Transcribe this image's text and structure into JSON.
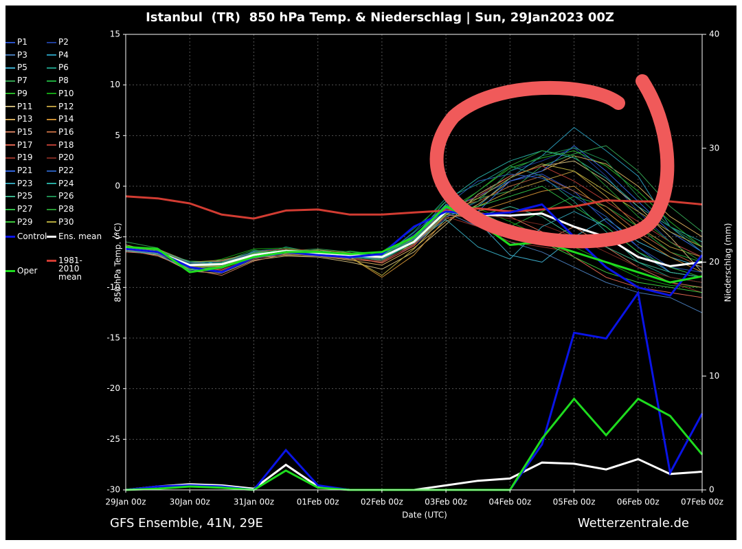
{
  "chart_data": {
    "type": "line",
    "title": "Istanbul  (TR)  850 hPa Temp. & Niederschlag | Sun, 29Jan2023 00Z",
    "x_label": "Date (UTC)",
    "y_label": "850 hPa Temp. (°C)",
    "y2_label": "Niederschlag (mm)",
    "footer_left": "GFS Ensemble, 41N, 29E",
    "footer_right": "Wetterzentrale.de",
    "grid": true,
    "x": [
      0,
      0.5,
      1,
      1.5,
      2,
      2.5,
      3,
      3.5,
      4,
      4.5,
      5,
      5.5,
      6,
      6.5,
      7,
      7.5,
      8,
      8.5,
      9
    ],
    "xlim": [
      0,
      9
    ],
    "xticks": [
      {
        "value": 0,
        "label": "29Jan 00z"
      },
      {
        "value": 1,
        "label": "30Jan 00z"
      },
      {
        "value": 2,
        "label": "31Jan 00z"
      },
      {
        "value": 3,
        "label": "01Feb 00z"
      },
      {
        "value": 4,
        "label": "02Feb 00z"
      },
      {
        "value": 5,
        "label": "03Feb 00z"
      },
      {
        "value": 6,
        "label": "04Feb 00z"
      },
      {
        "value": 7,
        "label": "05Feb 00z"
      },
      {
        "value": 8,
        "label": "06Feb 00z"
      },
      {
        "value": 9,
        "label": "07Feb 00z"
      }
    ],
    "ylim": [
      -30,
      15
    ],
    "yticks": [
      15,
      10,
      5,
      0,
      -5,
      -10,
      -15,
      -20,
      -25,
      -30
    ],
    "y2lim": [
      0,
      40
    ],
    "y2ticks": [
      40,
      30,
      20,
      10,
      0
    ],
    "series": [
      {
        "name": "P1",
        "color": "#2850c8",
        "values": [
          -6.0,
          -6.8,
          -8.2,
          -8.5,
          -7.2,
          -6.6,
          -6.9,
          -7.1,
          -6.8,
          -4.8,
          -2.2,
          -1.0,
          0.5,
          1.2,
          -0.5,
          -3.5,
          -6.0,
          -8.5,
          -9.0
        ]
      },
      {
        "name": "P2",
        "color": "#1e3c96",
        "values": [
          -6.3,
          -6.4,
          -7.5,
          -7.4,
          -6.5,
          -6.8,
          -6.4,
          -7.0,
          -7.3,
          -5.9,
          -3.1,
          -1.5,
          1.5,
          2.5,
          3.8,
          1.0,
          -2.5,
          -5.5,
          -7.0
        ]
      },
      {
        "name": "P3",
        "color": "#4678b4",
        "values": [
          -6.1,
          -6.2,
          -7.9,
          -7.6,
          -6.9,
          -6.3,
          -6.7,
          -6.6,
          -7.1,
          -5.2,
          -2.6,
          -4.0,
          -5.5,
          -6.5,
          -8.0,
          -9.5,
          -10.5,
          -11.0,
          -12.5
        ]
      },
      {
        "name": "P4",
        "color": "#2896b4",
        "values": [
          -6.4,
          -6.6,
          -7.6,
          -7.9,
          -6.4,
          -6.2,
          -6.5,
          -6.9,
          -6.9,
          -5.6,
          -3.0,
          -2.0,
          0.8,
          3.0,
          5.8,
          3.5,
          1.0,
          -4.0,
          -6.5
        ]
      },
      {
        "name": "P5",
        "color": "#3caac8",
        "values": [
          -6.2,
          -6.3,
          -8.0,
          -7.3,
          -6.7,
          -6.5,
          -6.3,
          -6.8,
          -7.4,
          -5.0,
          -1.8,
          -3.5,
          -6.8,
          -7.5,
          -5.0,
          -3.2,
          -5.5,
          -7.0,
          -8.0
        ]
      },
      {
        "name": "P6",
        "color": "#1e9682",
        "values": [
          -6.0,
          -6.7,
          -7.7,
          -8.1,
          -7.0,
          -6.0,
          -6.6,
          -7.2,
          -7.0,
          -4.5,
          -1.2,
          0.2,
          2.0,
          1.0,
          -1.5,
          -4.5,
          -7.5,
          -9.0,
          -9.5
        ]
      },
      {
        "name": "P7",
        "color": "#32a050",
        "values": [
          -5.5,
          -6.1,
          -8.3,
          -8.0,
          -6.6,
          -6.4,
          -6.2,
          -6.5,
          -6.6,
          -5.3,
          -2.0,
          -1.2,
          -0.5,
          2.0,
          3.2,
          4.0,
          1.5,
          -2.0,
          -4.5
        ]
      },
      {
        "name": "P8",
        "color": "#1eaa3c",
        "values": [
          -6.3,
          -6.5,
          -7.4,
          -7.5,
          -6.3,
          -6.7,
          -6.8,
          -6.4,
          -6.8,
          -4.9,
          -2.4,
          -3.0,
          -4.0,
          -2.5,
          -1.0,
          -2.0,
          -4.0,
          -6.5,
          -7.5
        ]
      },
      {
        "name": "P9",
        "color": "#28b428",
        "values": [
          -6.1,
          -6.6,
          -8.1,
          -7.8,
          -6.8,
          -6.3,
          -6.4,
          -6.9,
          -7.2,
          -5.4,
          -2.9,
          -0.5,
          1.8,
          2.8,
          3.5,
          2.0,
          -0.5,
          -3.5,
          -6.0
        ]
      },
      {
        "name": "P10",
        "color": "#14a014",
        "values": [
          -6.2,
          -6.3,
          -7.8,
          -7.2,
          -6.2,
          -6.1,
          -6.5,
          -6.7,
          -6.5,
          -4.2,
          -1.5,
          -2.2,
          -3.5,
          -5.0,
          -6.0,
          -7.5,
          -9.0,
          -9.8,
          -10.0
        ]
      },
      {
        "name": "P11",
        "color": "#c8b478",
        "values": [
          -6.4,
          -6.8,
          -8.4,
          -8.6,
          -7.3,
          -6.9,
          -7.0,
          -7.5,
          -8.2,
          -6.5,
          -3.8,
          -0.8,
          1.0,
          2.0,
          2.5,
          0.5,
          -2.0,
          -5.0,
          -8.5
        ]
      },
      {
        "name": "P12",
        "color": "#b4963c",
        "values": [
          -6.0,
          -6.2,
          -7.5,
          -7.3,
          -6.6,
          -6.6,
          -6.3,
          -6.6,
          -7.0,
          -5.8,
          -2.7,
          -2.0,
          -0.5,
          0.5,
          1.5,
          -1.0,
          -4.0,
          -6.0,
          -7.0
        ]
      },
      {
        "name": "P13",
        "color": "#d2aa5a",
        "values": [
          -5.8,
          -6.5,
          -8.0,
          -7.9,
          -7.1,
          -6.8,
          -6.9,
          -7.3,
          -7.8,
          -6.1,
          -3.5,
          -1.8,
          0.5,
          1.5,
          3.0,
          2.2,
          0.0,
          -3.0,
          -5.0
        ]
      },
      {
        "name": "P14",
        "color": "#c88c32",
        "values": [
          -6.2,
          -6.4,
          -7.7,
          -8.0,
          -6.9,
          -6.4,
          -6.6,
          -7.0,
          -9.0,
          -6.8,
          -3.2,
          -2.5,
          -1.5,
          -0.5,
          0.0,
          -2.5,
          -5.0,
          -7.0,
          -8.5
        ]
      },
      {
        "name": "P15",
        "color": "#c8785a",
        "values": [
          -6.3,
          -6.9,
          -8.2,
          -8.8,
          -7.4,
          -6.7,
          -6.8,
          -7.2,
          -7.5,
          -5.7,
          -2.8,
          -3.2,
          -4.5,
          -5.5,
          -4.0,
          -6.0,
          -8.0,
          -9.5,
          -10.0
        ]
      },
      {
        "name": "P16",
        "color": "#b4643c",
        "values": [
          -6.1,
          -6.3,
          -7.6,
          -7.4,
          -6.7,
          -6.5,
          -6.6,
          -6.9,
          -7.3,
          -5.5,
          -2.1,
          -1.5,
          0.0,
          1.0,
          -0.5,
          -2.0,
          -4.5,
          -6.5,
          -8.0
        ]
      },
      {
        "name": "P17",
        "color": "#dc6450",
        "values": [
          -6.5,
          -6.7,
          -7.9,
          -8.3,
          -7.0,
          -6.6,
          -6.7,
          -7.0,
          -7.6,
          -5.9,
          -2.3,
          -2.6,
          -3.0,
          -4.5,
          -7.0,
          -9.0,
          -10.0,
          -10.5,
          -11.0
        ]
      },
      {
        "name": "P18",
        "color": "#b43c32",
        "values": [
          -6.0,
          -6.4,
          -7.8,
          -7.6,
          -6.5,
          -6.2,
          -6.4,
          -6.8,
          -7.2,
          -5.1,
          -2.5,
          -1.0,
          1.0,
          2.0,
          0.5,
          -1.5,
          -3.5,
          -5.5,
          -7.0
        ]
      },
      {
        "name": "P19",
        "color": "#963228",
        "values": [
          -6.2,
          -6.6,
          -8.1,
          -8.2,
          -7.2,
          -6.5,
          -6.7,
          -7.1,
          -7.4,
          -5.8,
          -3.0,
          -4.0,
          -5.5,
          -6.0,
          -6.5,
          -7.5,
          -8.5,
          -9.5,
          -10.5
        ]
      },
      {
        "name": "P20",
        "color": "#7a2820",
        "values": [
          -6.3,
          -6.5,
          -7.7,
          -7.7,
          -6.8,
          -6.4,
          -6.6,
          -6.9,
          -7.1,
          -5.4,
          -2.6,
          -2.8,
          -3.2,
          -3.8,
          -5.0,
          -6.5,
          -8.0,
          -9.0,
          -9.5
        ]
      },
      {
        "name": "P21",
        "color": "#3264dc",
        "values": [
          -6.1,
          -6.6,
          -8.0,
          -8.4,
          -7.1,
          -6.6,
          -6.8,
          -7.1,
          -7.0,
          -5.2,
          -2.2,
          -2.5,
          0.5,
          1.5,
          4.0,
          1.5,
          -1.5,
          -4.5,
          -6.5
        ]
      },
      {
        "name": "P22",
        "color": "#285ab4",
        "values": [
          -6.2,
          -6.5,
          -7.6,
          -7.6,
          -6.6,
          -6.3,
          -6.5,
          -6.8,
          -6.9,
          -4.6,
          -1.9,
          0.5,
          1.2,
          0.8,
          -1.0,
          -3.0,
          -6.0,
          -8.0,
          -8.5
        ]
      },
      {
        "name": "P23",
        "color": "#32a0b4",
        "values": [
          -6.4,
          -6.7,
          -8.3,
          -8.1,
          -7.0,
          -6.5,
          -6.7,
          -7.0,
          -7.2,
          -5.6,
          -3.3,
          -6.0,
          -7.2,
          -4.0,
          -2.5,
          -4.0,
          -6.5,
          -8.5,
          -9.0
        ]
      },
      {
        "name": "P24",
        "color": "#28aaa0",
        "values": [
          -6.0,
          -6.3,
          -7.5,
          -7.5,
          -6.5,
          -6.4,
          -6.5,
          -6.7,
          -6.8,
          -5.0,
          -1.5,
          0.8,
          2.5,
          3.5,
          2.8,
          0.8,
          -2.0,
          -4.0,
          -5.5
        ]
      },
      {
        "name": "P25",
        "color": "#3cb48c",
        "values": [
          -6.2,
          -6.5,
          -7.9,
          -7.8,
          -6.9,
          -6.5,
          -6.6,
          -6.9,
          -7.1,
          -5.5,
          -2.6,
          -3.0,
          -2.0,
          -3.0,
          -5.0,
          -6.0,
          -7.5,
          -8.5,
          -9.0
        ]
      },
      {
        "name": "P26",
        "color": "#1e8c50",
        "values": [
          -6.3,
          -6.6,
          -8.0,
          -8.0,
          -7.0,
          -6.6,
          -6.7,
          -7.0,
          -7.3,
          -5.6,
          -2.7,
          -1.5,
          1.5,
          3.0,
          3.8,
          2.5,
          -1.0,
          -4.0,
          -6.0
        ]
      },
      {
        "name": "P27",
        "color": "#32be46",
        "values": [
          -6.1,
          -6.4,
          -7.7,
          -7.6,
          -6.7,
          -6.4,
          -6.5,
          -6.8,
          -7.0,
          -5.3,
          -2.4,
          -2.0,
          -1.0,
          0.0,
          -2.0,
          -4.0,
          -6.5,
          -8.0,
          -9.0
        ]
      },
      {
        "name": "P28",
        "color": "#289632",
        "values": [
          -6.2,
          -6.5,
          -7.8,
          -7.8,
          -6.8,
          -6.5,
          -6.6,
          -6.8,
          -7.1,
          -5.4,
          -2.5,
          -0.5,
          2.0,
          3.5,
          3.0,
          0.0,
          -3.0,
          -5.5,
          -7.5
        ]
      },
      {
        "name": "P29",
        "color": "#3cc83c",
        "values": [
          -6.0,
          -6.3,
          -8.2,
          -8.0,
          -6.6,
          -6.3,
          -6.4,
          -6.7,
          -6.9,
          -5.1,
          -2.0,
          -2.5,
          -4.0,
          -5.5,
          -7.0,
          -8.5,
          -9.5,
          -10.0,
          -10.5
        ]
      },
      {
        "name": "P30",
        "color": "#b4aa3c",
        "values": [
          -6.3,
          -6.6,
          -7.9,
          -7.9,
          -6.9,
          -6.6,
          -6.7,
          -7.0,
          -8.8,
          -6.2,
          -2.8,
          -1.2,
          0.8,
          2.2,
          1.5,
          -0.5,
          -2.5,
          -4.5,
          -6.0
        ]
      },
      {
        "name": "Control",
        "color": "#0a14e6",
        "values": [
          -6.2,
          -6.5,
          -8.0,
          -8.5,
          -7.0,
          -6.5,
          -6.8,
          -7.0,
          -6.7,
          -4.0,
          -2.5,
          -2.8,
          -2.6,
          -1.8,
          -5.0,
          -8.0,
          -10.0,
          -10.8,
          -6.8
        ],
        "precip": [
          0,
          0.3,
          0.4,
          0.3,
          0,
          3.5,
          0.4,
          0,
          0,
          0,
          0,
          0,
          0,
          4,
          13.8,
          13.3,
          17.3,
          1.5,
          6.7
        ]
      },
      {
        "name": "Ens. mean",
        "color": "#ffffff",
        "values": [
          -6.2,
          -6.5,
          -7.8,
          -7.7,
          -6.8,
          -6.4,
          -6.6,
          -6.8,
          -7.0,
          -5.5,
          -2.5,
          -2.8,
          -2.9,
          -2.7,
          -4.0,
          -5.0,
          -7.0,
          -7.9,
          -7.5
        ],
        "precip": [
          0,
          0.3,
          0.5,
          0.4,
          0.1,
          2.2,
          0.3,
          0,
          0,
          0,
          0.4,
          0.8,
          1.0,
          2.4,
          2.3,
          1.8,
          2.7,
          1.4,
          1.6
        ]
      },
      {
        "name": "1981-2010 mean",
        "color": "#d23c32",
        "values": [
          -1.0,
          -1.2,
          -1.7,
          -2.8,
          -3.2,
          -2.4,
          -2.3,
          -2.8,
          -2.8,
          -2.6,
          -2.4,
          -2.2,
          -2.5,
          -2.3,
          -2.0,
          -1.4,
          -1.5,
          -1.5,
          -1.8
        ]
      },
      {
        "name": "Oper",
        "color": "#1edc1e",
        "values": [
          -6.0,
          -6.2,
          -8.5,
          -8.0,
          -7.0,
          -6.5,
          -6.5,
          -6.7,
          -6.5,
          -5.0,
          -2.0,
          -3.5,
          -5.8,
          -5.5,
          -6.5,
          -7.5,
          -8.5,
          -9.5,
          -8.9
        ],
        "precip": [
          0,
          0.1,
          0.3,
          0.2,
          0,
          1.7,
          0.2,
          0,
          0,
          0,
          0,
          0,
          0,
          4.5,
          8.0,
          4.8,
          8.0,
          6.5,
          3.1
        ]
      }
    ]
  }
}
